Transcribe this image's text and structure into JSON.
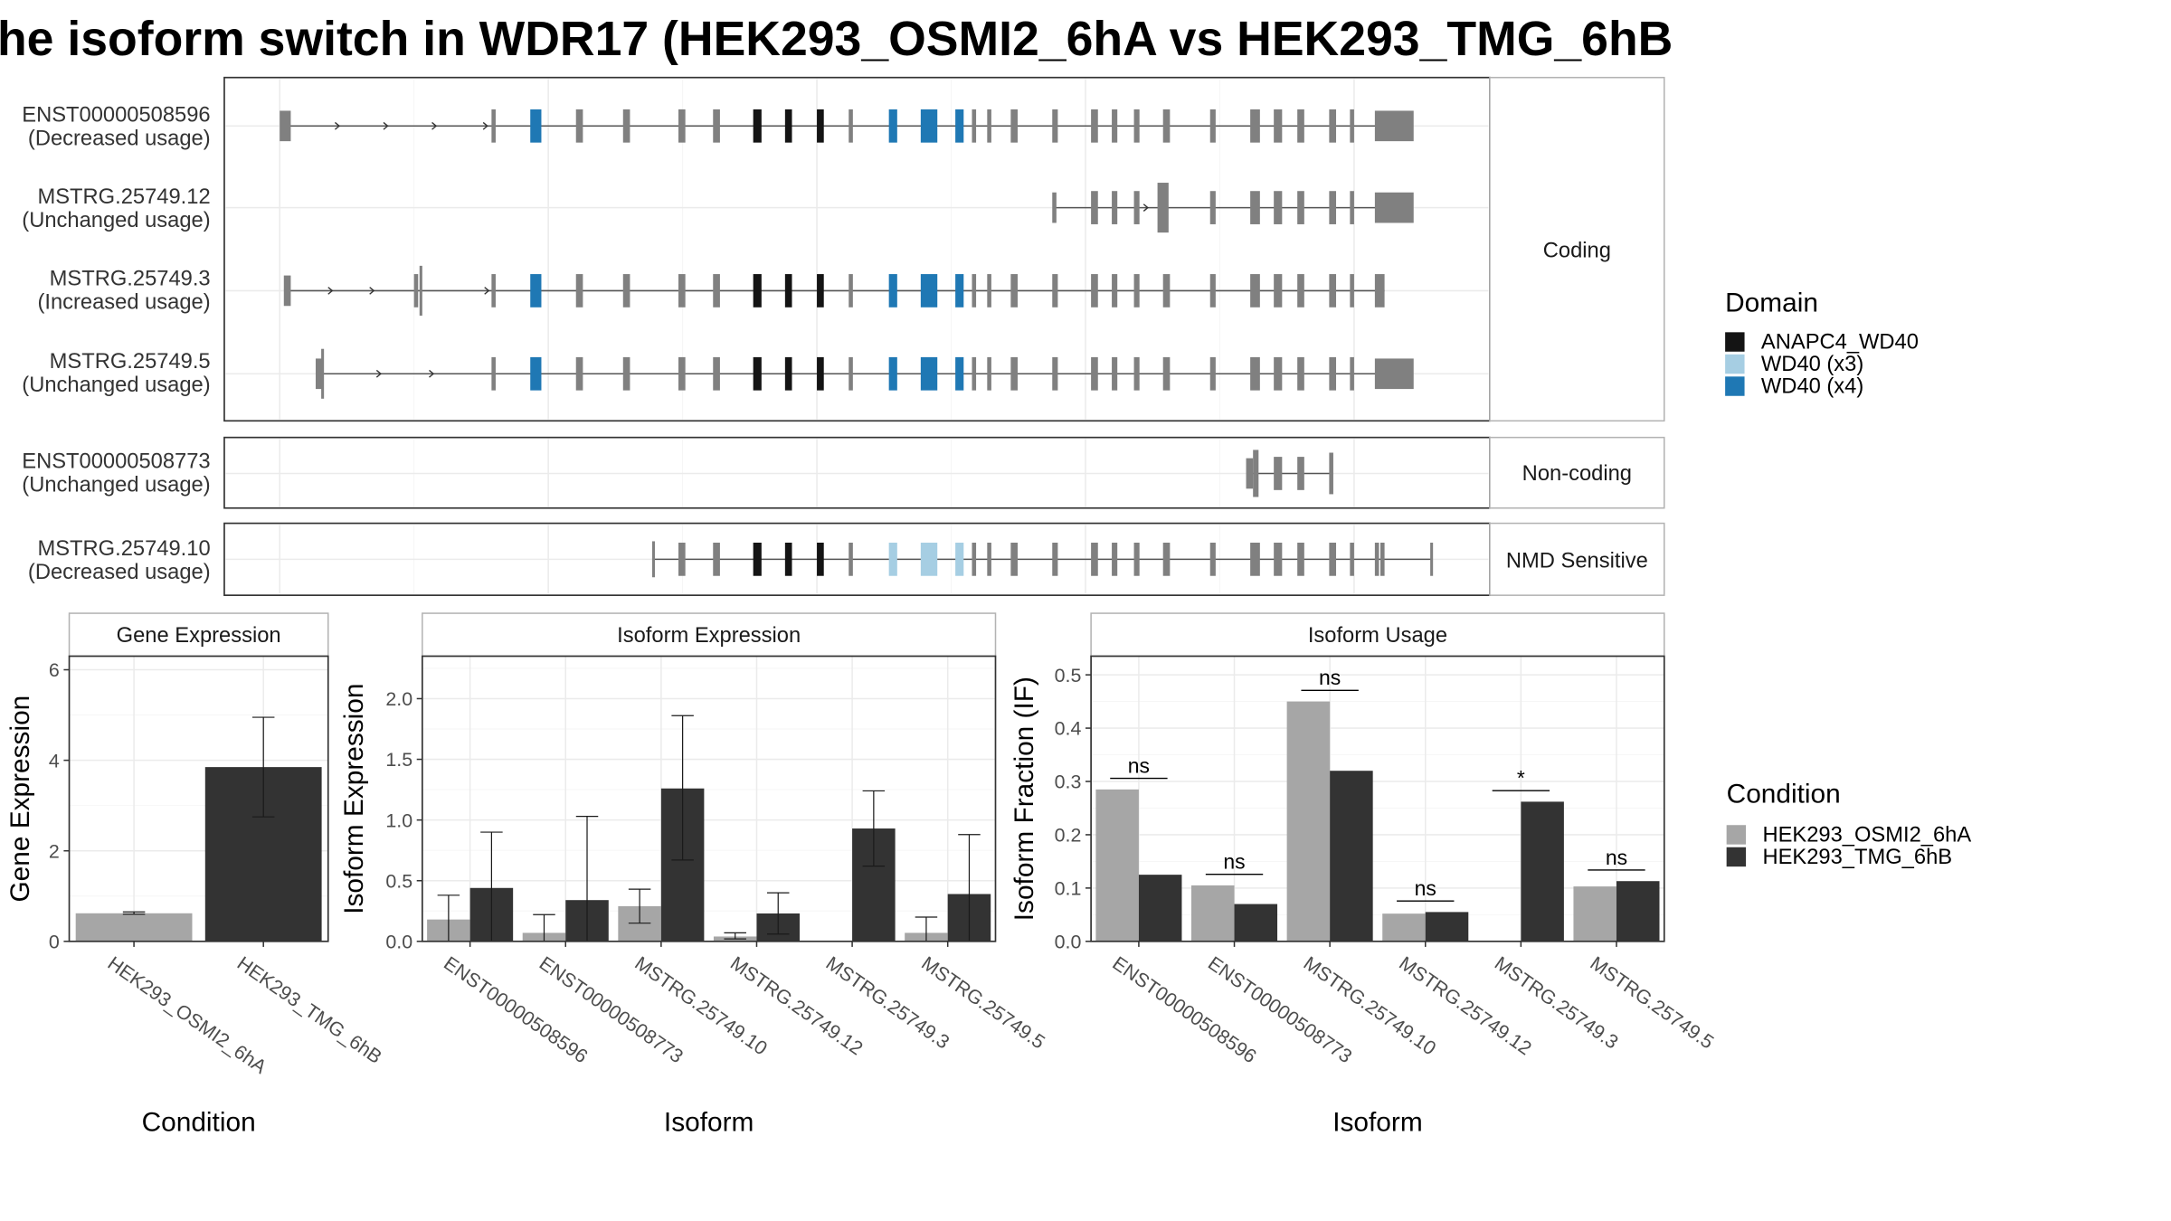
{
  "title": "he isoform switch in WDR17 (HEK293_OSMI2_6hA vs HEK293_TMG_6hB",
  "colors": {
    "exon": "#808080",
    "ANAPC4_WD40": "#141414",
    "WD40_x3": "#a6cee3",
    "WD40_x4": "#1f78b4",
    "cond_a": "#a6a6a6",
    "cond_b": "#333333"
  },
  "structure": {
    "facets": [
      {
        "label": "Coding",
        "transcripts": [
          {
            "id": "ENST00000508596",
            "usage": "(Decreased usage)"
          },
          {
            "id": "MSTRG.25749.12",
            "usage": "(Unchanged usage)"
          },
          {
            "id": "MSTRG.25749.3",
            "usage": "(Increased usage)"
          },
          {
            "id": "MSTRG.25749.5",
            "usage": "(Unchanged usage)"
          }
        ]
      },
      {
        "label": "Non-coding",
        "transcripts": [
          {
            "id": "ENST00000508773",
            "usage": "(Unchanged usage)"
          }
        ]
      },
      {
        "label": "NMD Sensitive",
        "transcripts": [
          {
            "id": "MSTRG.25749.10",
            "usage": "(Decreased usage)"
          }
        ]
      }
    ]
  },
  "legend_domain": {
    "title": "Domain",
    "items": [
      {
        "label": "ANAPC4_WD40",
        "color": "#141414"
      },
      {
        "label": "WD40 (x3)",
        "color": "#a6cee3"
      },
      {
        "label": "WD40 (x4)",
        "color": "#1f78b4"
      }
    ]
  },
  "legend_condition": {
    "title": "Condition",
    "items": [
      {
        "label": "HEK293_OSMI2_6hA",
        "color": "#a6a6a6"
      },
      {
        "label": "HEK293_TMG_6hB",
        "color": "#333333"
      }
    ]
  },
  "chart_data": [
    {
      "type": "bar",
      "title": "Gene Expression",
      "xlabel": "Condition",
      "ylabel": "Gene Expression",
      "ylim": [
        0,
        6.3
      ],
      "yticks": [
        "0",
        "2",
        "4",
        "6"
      ],
      "categories": [
        "HEK293_OSMI2_6hA",
        "HEK293_TMG_6hB"
      ],
      "values": [
        0.62,
        3.85
      ],
      "error_low": [
        0.6,
        2.75
      ],
      "error_high": [
        0.65,
        4.95
      ]
    },
    {
      "type": "bar",
      "title": "Isoform Expression",
      "xlabel": "Isoform",
      "ylabel": "Isoform Expression",
      "ylim": [
        0,
        2.35
      ],
      "yticks": [
        "0.0",
        "0.5",
        "1.0",
        "1.5",
        "2.0"
      ],
      "categories": [
        "ENST00000508596",
        "ENST00000508773",
        "MSTRG.25749.10",
        "MSTRG.25749.12",
        "MSTRG.25749.3",
        "MSTRG.25749.5"
      ],
      "series": [
        {
          "name": "HEK293_OSMI2_6hA",
          "values": [
            0.18,
            0.07,
            0.29,
            0.04,
            0.0,
            0.07
          ],
          "error_low": [
            0.0,
            0.0,
            0.15,
            0.02,
            0.0,
            0.0
          ],
          "error_high": [
            0.38,
            0.22,
            0.43,
            0.07,
            0.0,
            0.2
          ]
        },
        {
          "name": "HEK293_TMG_6hB",
          "values": [
            0.44,
            0.34,
            1.26,
            0.23,
            0.93,
            0.39
          ],
          "error_low": [
            0.0,
            0.0,
            0.67,
            0.06,
            0.62,
            0.0
          ],
          "error_high": [
            0.9,
            1.03,
            1.86,
            0.4,
            1.24,
            0.88
          ]
        }
      ]
    },
    {
      "type": "bar",
      "title": "Isoform Usage",
      "xlabel": "Isoform",
      "ylabel": "Isoform Fraction (IF)",
      "ylim": [
        0,
        0.535
      ],
      "yticks": [
        "0.0",
        "0.1",
        "0.2",
        "0.3",
        "0.4",
        "0.5"
      ],
      "categories": [
        "ENST00000508596",
        "ENST00000508773",
        "MSTRG.25749.10",
        "MSTRG.25749.12",
        "MSTRG.25749.3",
        "MSTRG.25749.5"
      ],
      "series": [
        {
          "name": "HEK293_OSMI2_6hA",
          "values": [
            0.285,
            0.105,
            0.45,
            0.052,
            0.0,
            0.103
          ]
        },
        {
          "name": "HEK293_TMG_6hB",
          "values": [
            0.125,
            0.07,
            0.32,
            0.055,
            0.262,
            0.113
          ]
        }
      ],
      "significance": [
        "ns",
        "ns",
        "ns",
        "ns",
        "*",
        "ns"
      ]
    }
  ]
}
